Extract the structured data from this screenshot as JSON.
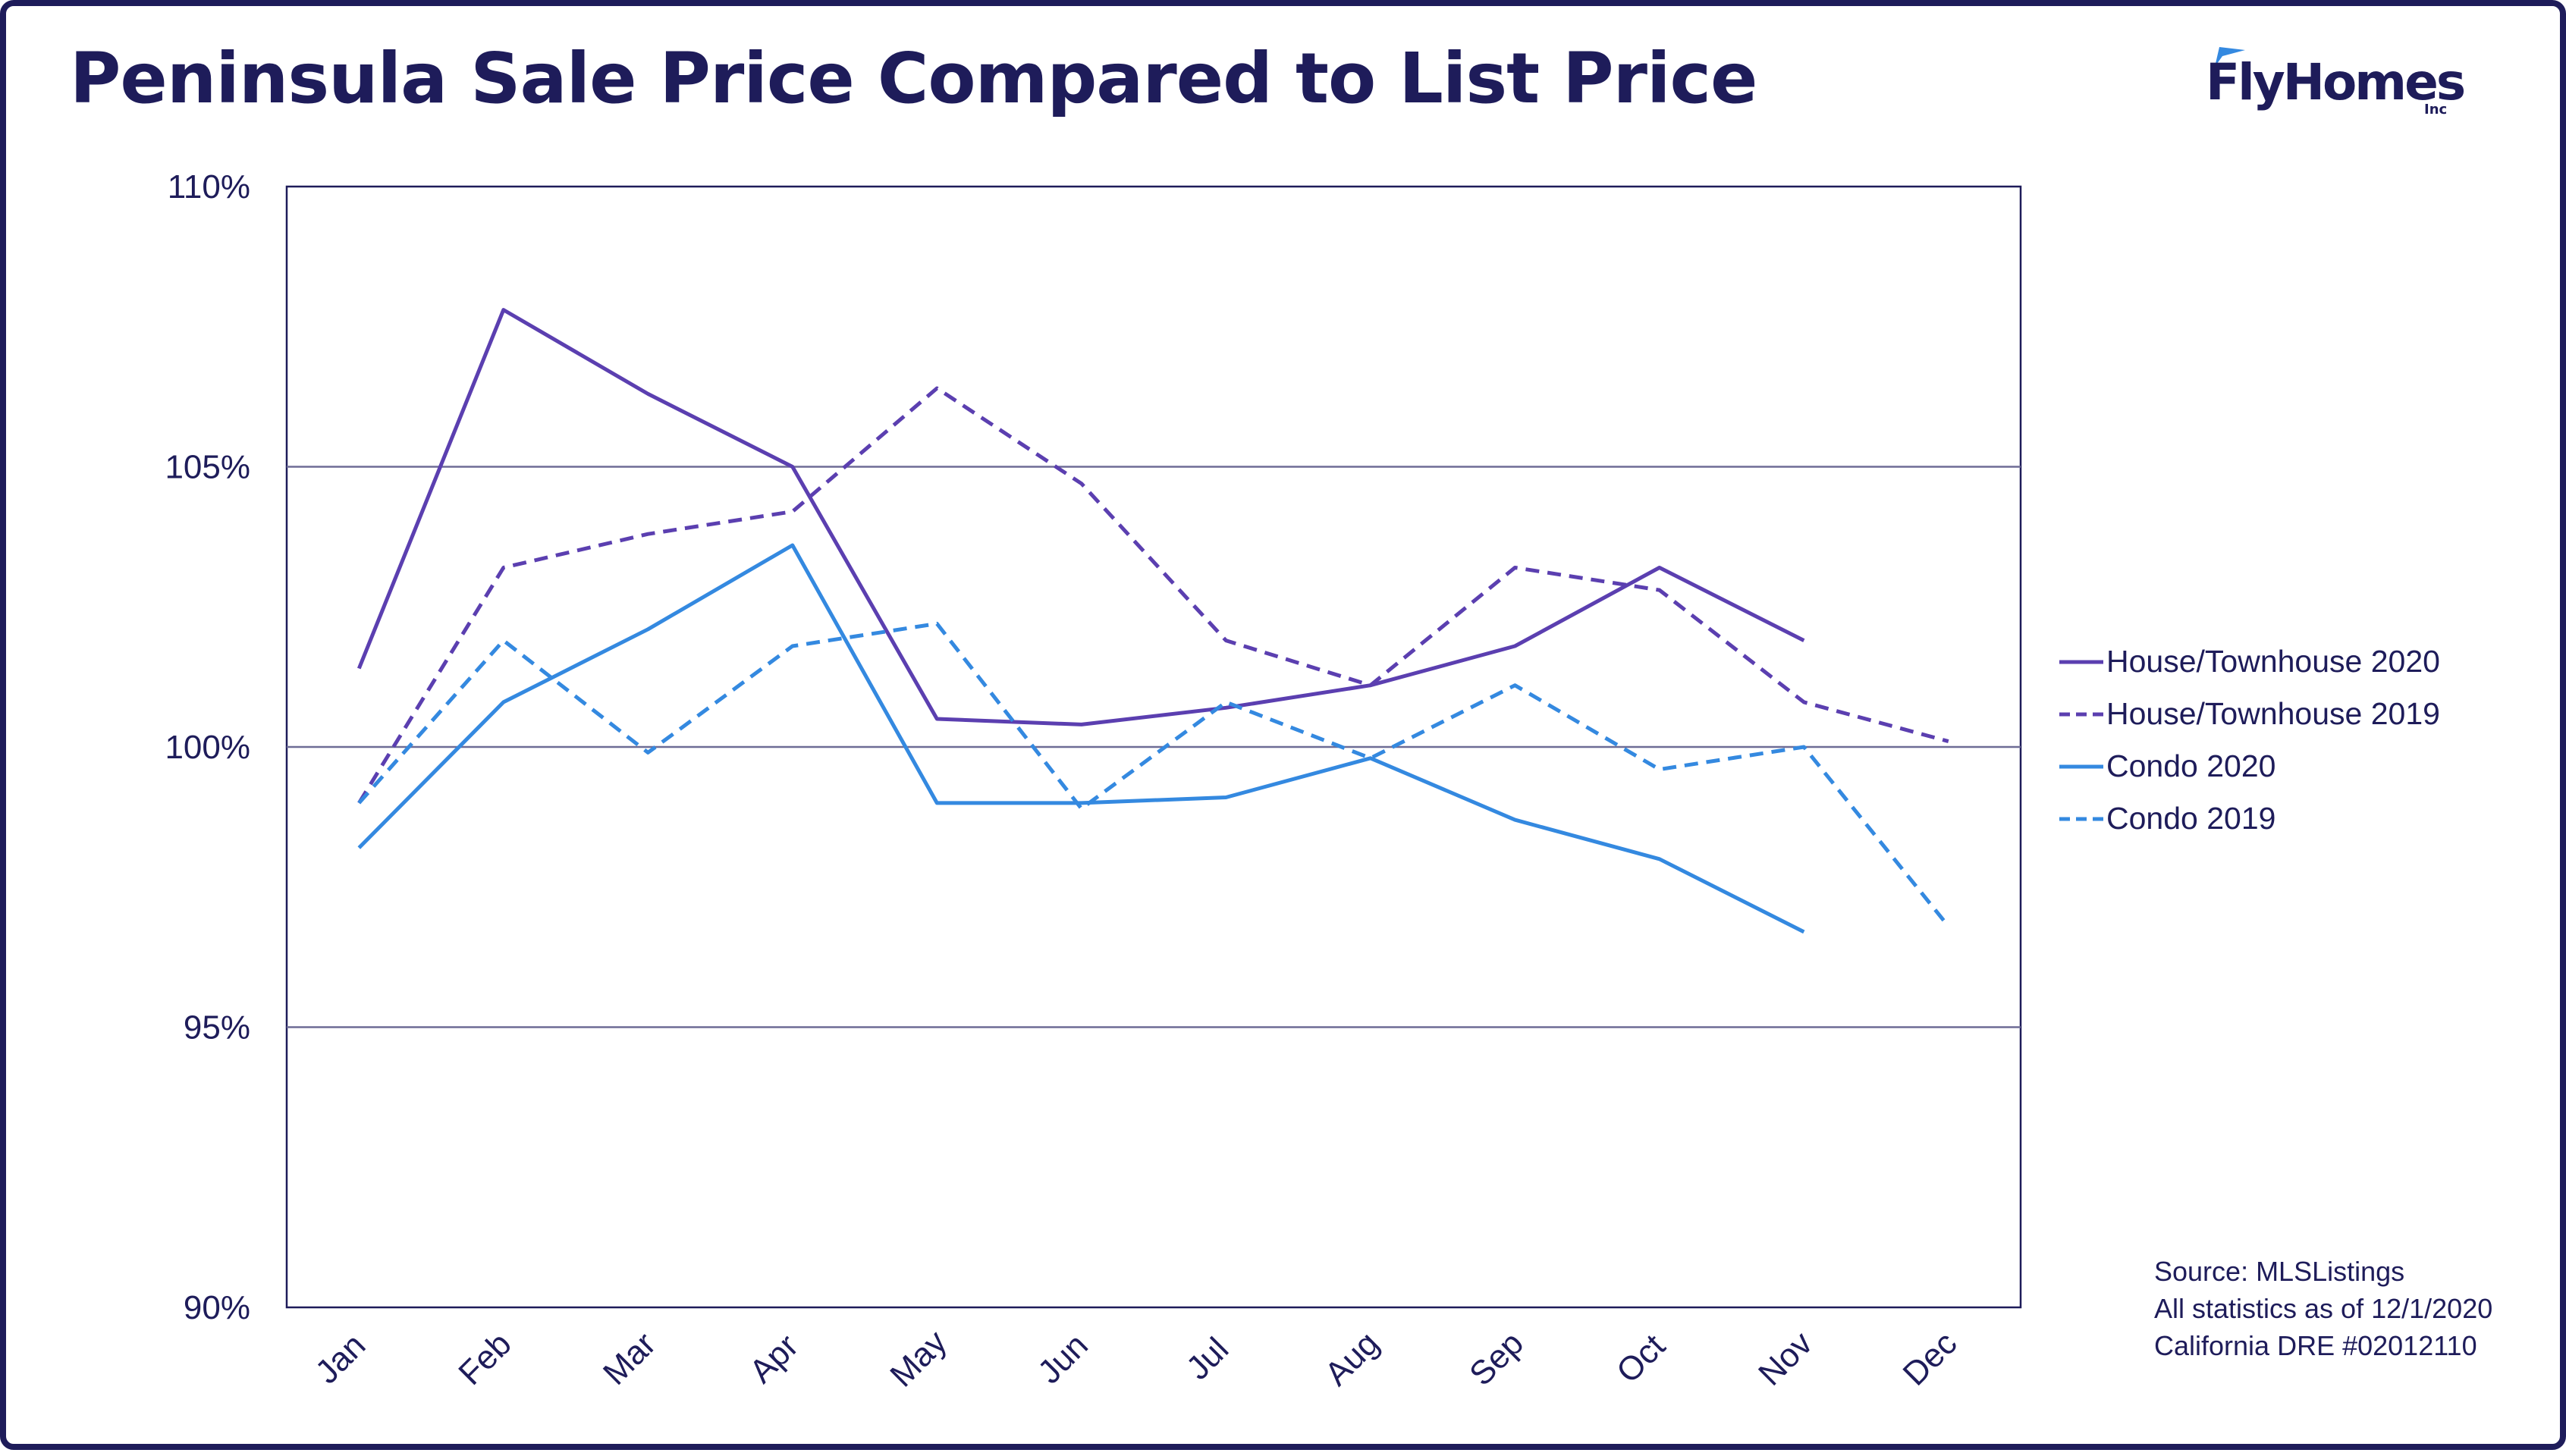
{
  "title": "Peninsula Sale Price Compared to List Price",
  "logo": {
    "text": "FlyHomes",
    "suffix": "Inc"
  },
  "source_lines": [
    "Source: MLSListings",
    "All statistics as of 12/1/2020",
    "California DRE #02012110"
  ],
  "colors": {
    "navy": "#1e1c5a",
    "purple": "#5b3fb0",
    "blue": "#3489e0",
    "grid": "#6e6c95"
  },
  "chart_data": {
    "type": "line",
    "title": "Peninsula Sale Price Compared to List Price",
    "xlabel": "",
    "ylabel": "",
    "categories": [
      "Jan",
      "Feb",
      "Mar",
      "Apr",
      "May",
      "Jun",
      "Jul",
      "Aug",
      "Sep",
      "Oct",
      "Nov",
      "Dec"
    ],
    "ylim": [
      90,
      110
    ],
    "yticks": [
      90,
      95,
      100,
      105,
      110
    ],
    "ytick_labels": [
      "90%",
      "95%",
      "100%",
      "105%",
      "110%"
    ],
    "grid": true,
    "legend_position": "right",
    "series": [
      {
        "name": "House/Townhouse 2020",
        "style": "solid",
        "color": "#5b3fb0",
        "values": [
          101.4,
          107.8,
          106.3,
          105.0,
          100.5,
          100.4,
          100.7,
          101.1,
          101.8,
          103.2,
          101.9,
          null
        ]
      },
      {
        "name": "House/Townhouse 2019",
        "style": "dashed",
        "color": "#5b3fb0",
        "values": [
          99.0,
          103.2,
          103.8,
          104.2,
          106.4,
          104.7,
          101.9,
          101.1,
          103.2,
          102.8,
          100.8,
          100.1
        ]
      },
      {
        "name": "Condo 2020",
        "style": "solid",
        "color": "#3489e0",
        "values": [
          98.2,
          100.8,
          102.1,
          103.6,
          99.0,
          99.0,
          99.1,
          99.8,
          98.7,
          98.0,
          96.7,
          null
        ]
      },
      {
        "name": "Condo 2019",
        "style": "dashed",
        "color": "#3489e0",
        "values": [
          99.0,
          101.9,
          99.9,
          101.8,
          102.2,
          98.9,
          100.8,
          99.8,
          101.1,
          99.6,
          100.0,
          96.8
        ]
      }
    ]
  }
}
